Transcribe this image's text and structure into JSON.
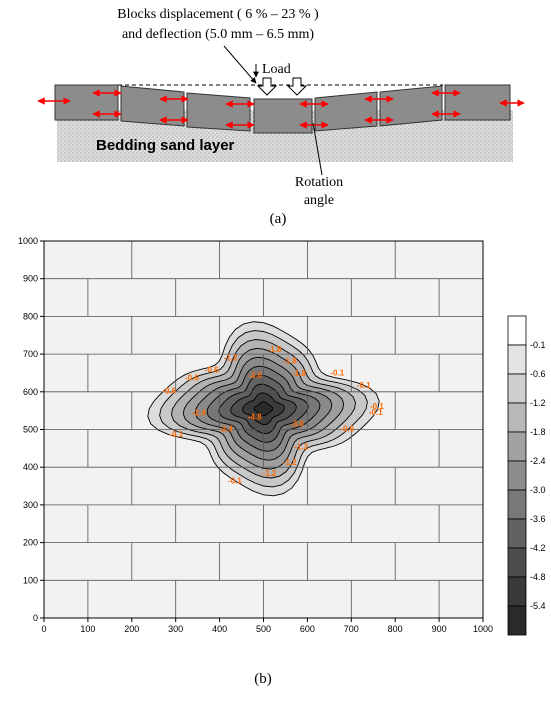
{
  "panel_a": {
    "annotation_line1": "Blocks displacement ( 6 % – 23 % )",
    "annotation_line2": "and deflection (5.0 mm – 6.5 mm)",
    "load_label": "Load",
    "bedding_label": "Bedding sand layer",
    "rotation_line1": "Rotation",
    "rotation_line2": "angle",
    "caption": "(a)",
    "colors": {
      "arrow": "#ff0000",
      "block": "#8c8c8c",
      "sand": "#dcdcdc"
    }
  },
  "panel_b": {
    "caption": "(b)",
    "chart_data": {
      "type": "contour",
      "x_ticks": [
        "0",
        "100",
        "200",
        "300",
        "400",
        "500",
        "600",
        "700",
        "800",
        "900",
        "1000"
      ],
      "y_ticks": [
        "0",
        "100",
        "200",
        "300",
        "400",
        "500",
        "600",
        "700",
        "800",
        "900",
        "1000"
      ],
      "xlim": [
        0,
        1000
      ],
      "ylim": [
        0,
        1000
      ],
      "center": [
        500,
        555
      ],
      "min_value": -5.4,
      "levels": [
        -0.1,
        -0.6,
        -1.2,
        -1.8,
        -2.4,
        -3.0,
        -3.6,
        -4.2,
        -4.8,
        -5.4
      ],
      "legend_labels": [
        "-0.1",
        "-0.6",
        "-1.2",
        "-1.8",
        "-2.4",
        "-3.0",
        "-3.6",
        "-4.2",
        "-4.8",
        "-5.4"
      ],
      "contour_labels": [
        "-0.1",
        "-0.6",
        "-1.2",
        "-1.8",
        "-2.4",
        "-3.0",
        "-3.6",
        "-4.8",
        "-0.1",
        "-0.6",
        "-1.2",
        "-1.8",
        "-0.1",
        "-0.6",
        "-1.2",
        "-0.1",
        "-0.1",
        "-0.6",
        "-1.2",
        "-1.8",
        "-2.4",
        "-0.1"
      ],
      "grid": "brick pattern",
      "legend_position": "right"
    },
    "colors": {
      "contour_label": "#ff6a00",
      "line": "#000000"
    }
  }
}
